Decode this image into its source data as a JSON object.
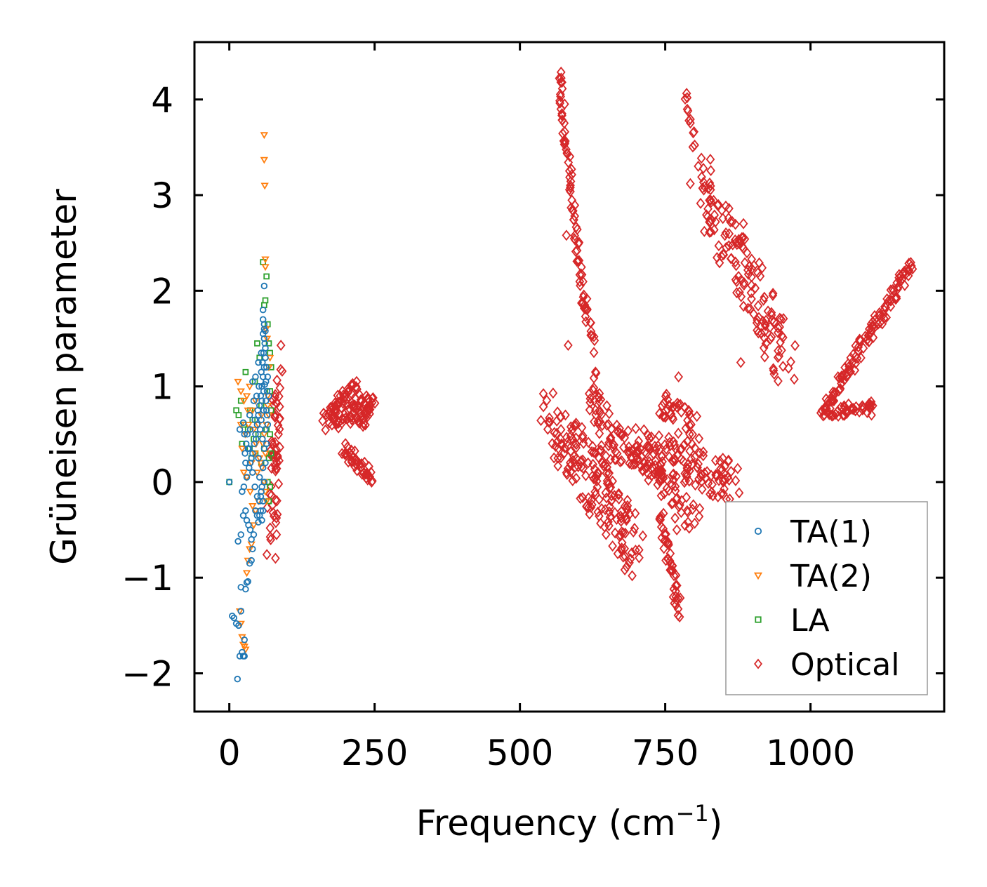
{
  "chart_data": {
    "type": "scatter",
    "title": "",
    "xlabel": "Frequency (cm",
    "xlabel_sup": "−1",
    "xlabel_close": ")",
    "ylabel": "Grüneisen parameter",
    "xlim": [
      -60,
      1230
    ],
    "ylim": [
      -2.4,
      4.6
    ],
    "xticks": [
      0,
      250,
      500,
      750,
      1000
    ],
    "xtick_labels": [
      "0",
      "250",
      "500",
      "750",
      "1000"
    ],
    "yticks": [
      -2,
      -1,
      0,
      1,
      2,
      3,
      4
    ],
    "ytick_labels": [
      "−2",
      "−1",
      "0",
      "1",
      "2",
      "3",
      "4"
    ],
    "legend_position": "bottom-right",
    "series": [
      {
        "name": "TA(1)",
        "marker": "circle",
        "color": "#1f77b4",
        "points": [
          [
            0,
            0
          ],
          [
            5,
            -1.4
          ],
          [
            8,
            -1.42
          ],
          [
            12,
            -1.48
          ],
          [
            14,
            -2.06
          ],
          [
            16,
            -1.5
          ],
          [
            18,
            -1.82
          ],
          [
            20,
            -1.35
          ],
          [
            20,
            -1.1
          ],
          [
            22,
            -1.78
          ],
          [
            24,
            -1.82
          ],
          [
            26,
            -1.82
          ],
          [
            26,
            -1.65
          ],
          [
            28,
            -1.12
          ],
          [
            30,
            -1.05
          ],
          [
            32,
            -1.04
          ],
          [
            35,
            -0.85
          ],
          [
            38,
            -0.82
          ],
          [
            40,
            -0.7
          ],
          [
            15,
            -0.62
          ],
          [
            20,
            -0.55
          ],
          [
            24,
            -0.35
          ],
          [
            28,
            -0.3
          ],
          [
            30,
            -0.4
          ],
          [
            33,
            -0.45
          ],
          [
            36,
            -0.5
          ],
          [
            38,
            -0.6
          ],
          [
            42,
            -0.55
          ],
          [
            45,
            -0.3
          ],
          [
            48,
            -0.35
          ],
          [
            50,
            -0.42
          ],
          [
            52,
            -0.2
          ],
          [
            55,
            -0.1
          ],
          [
            58,
            -0.3
          ],
          [
            22,
            -0.1
          ],
          [
            25,
            -0.05
          ],
          [
            30,
            0.05
          ],
          [
            34,
            0.15
          ],
          [
            38,
            0.25
          ],
          [
            40,
            0.3
          ],
          [
            43,
            0.4
          ],
          [
            45,
            0.5
          ],
          [
            48,
            0.6
          ],
          [
            50,
            0.7
          ],
          [
            52,
            0.8
          ],
          [
            54,
            0.9
          ],
          [
            56,
            1.0
          ],
          [
            58,
            1.1
          ],
          [
            60,
            1.2
          ],
          [
            62,
            1.3
          ],
          [
            60,
            1.5
          ],
          [
            58,
            1.7
          ],
          [
            60,
            1.6
          ],
          [
            62,
            1.4
          ],
          [
            55,
            1.15
          ],
          [
            57,
            1.25
          ],
          [
            59,
            1.35
          ],
          [
            61,
            1.45
          ],
          [
            63,
            1.05
          ],
          [
            65,
            0.95
          ],
          [
            64,
            0.75
          ],
          [
            62,
            0.55
          ],
          [
            60,
            0.35
          ],
          [
            58,
            0.15
          ],
          [
            56,
            -0.05
          ],
          [
            54,
            -0.15
          ],
          [
            52,
            0.05
          ],
          [
            50,
            0.25
          ],
          [
            46,
            0.45
          ],
          [
            44,
            0.65
          ],
          [
            42,
            0.85
          ],
          [
            40,
            1.05
          ],
          [
            36,
            0.55
          ],
          [
            32,
            0.35
          ],
          [
            28,
            0.2
          ],
          [
            26,
            0.5
          ],
          [
            24,
            0.62
          ],
          [
            18,
            0.55
          ],
          [
            35,
            0.7
          ],
          [
            45,
            1.1
          ],
          [
            50,
            1.25
          ],
          [
            55,
            1.35
          ],
          [
            58,
            1.55
          ],
          [
            60,
            1.65
          ],
          [
            62,
            1.58
          ],
          [
            64,
            1.2
          ],
          [
            66,
            1.1
          ],
          [
            68,
            0.9
          ],
          [
            66,
            0.6
          ],
          [
            64,
            0.4
          ],
          [
            62,
            0.2
          ],
          [
            60,
            0.0
          ],
          [
            58,
            -0.2
          ],
          [
            56,
            -0.4
          ],
          [
            54,
            -0.3
          ],
          [
            52,
            -0.35
          ],
          [
            48,
            -0.15
          ],
          [
            44,
            -0.05
          ],
          [
            40,
            0.1
          ],
          [
            36,
            0.2
          ],
          [
            34,
            0.35
          ],
          [
            31,
            0.5
          ],
          [
            29,
            0.4
          ],
          [
            27,
            0.3
          ],
          [
            60,
            2.05
          ],
          [
            58,
            1.8
          ],
          [
            56,
            0.85
          ],
          [
            59,
            0.95
          ],
          [
            61,
            1.02
          ],
          [
            63,
            0.85
          ],
          [
            65,
            0.7
          ],
          [
            57,
            0.45
          ],
          [
            53,
            0.55
          ],
          [
            49,
            0.75
          ],
          [
            47,
            0.9
          ],
          [
            51,
            1.0
          ],
          [
            55,
            0.65
          ],
          [
            59,
            0.75
          ]
        ]
      },
      {
        "name": "TA(2)",
        "marker": "triangle-down",
        "color": "#ff7f0e",
        "points": [
          [
            60,
            3.63
          ],
          [
            60,
            3.37
          ],
          [
            61,
            3.1
          ],
          [
            62,
            2.33
          ],
          [
            62,
            2.25
          ],
          [
            15,
            1.05
          ],
          [
            20,
            0.95
          ],
          [
            25,
            0.85
          ],
          [
            30,
            0.9
          ],
          [
            35,
            1.0
          ],
          [
            40,
            0.75
          ],
          [
            45,
            0.85
          ],
          [
            50,
            0.6
          ],
          [
            55,
            0.7
          ],
          [
            22,
            0.35
          ],
          [
            28,
            0.5
          ],
          [
            33,
            0.6
          ],
          [
            38,
            0.2
          ],
          [
            44,
            0.3
          ],
          [
            48,
            0.1
          ],
          [
            52,
            0.25
          ],
          [
            58,
            0.4
          ],
          [
            60,
            0.5
          ],
          [
            62,
            0.3
          ],
          [
            64,
            0.6
          ],
          [
            66,
            0.8
          ],
          [
            68,
            0.7
          ],
          [
            25,
            0.1
          ],
          [
            30,
            0.05
          ],
          [
            36,
            -0.1
          ],
          [
            40,
            -0.25
          ],
          [
            45,
            -0.3
          ],
          [
            50,
            -0.2
          ],
          [
            18,
            -1.35
          ],
          [
            20,
            -1.48
          ],
          [
            22,
            -1.62
          ],
          [
            24,
            -1.7
          ],
          [
            26,
            -1.72
          ],
          [
            28,
            -1.75
          ],
          [
            30,
            -0.95
          ],
          [
            32,
            -0.82
          ],
          [
            35,
            -0.7
          ],
          [
            38,
            -0.65
          ],
          [
            42,
            -0.45
          ],
          [
            56,
            0.15
          ],
          [
            60,
            0.0
          ],
          [
            62,
            -0.1
          ],
          [
            64,
            -0.2
          ],
          [
            66,
            0.9
          ],
          [
            68,
            1.2
          ],
          [
            70,
            1.3
          ],
          [
            65,
            1.5
          ],
          [
            63,
            1.6
          ],
          [
            20,
            0.6
          ],
          [
            32,
            0.75
          ],
          [
            42,
            0.55
          ],
          [
            46,
            0.4
          ],
          [
            54,
            0.2
          ]
        ]
      },
      {
        "name": "LA",
        "marker": "square",
        "color": "#2ca02c",
        "points": [
          [
            0,
            0
          ],
          [
            12,
            0.75
          ],
          [
            16,
            0.7
          ],
          [
            20,
            0.85
          ],
          [
            22,
            0.4
          ],
          [
            25,
            0.6
          ],
          [
            28,
            1.15
          ],
          [
            32,
            0.55
          ],
          [
            36,
            0.75
          ],
          [
            40,
            0.65
          ],
          [
            44,
            1.05
          ],
          [
            48,
            1.45
          ],
          [
            52,
            1.3
          ],
          [
            55,
            0.8
          ],
          [
            58,
            2.3
          ],
          [
            60,
            1.85
          ],
          [
            62,
            1.9
          ],
          [
            64,
            2.15
          ],
          [
            66,
            1.65
          ],
          [
            68,
            1.45
          ],
          [
            70,
            1.35
          ],
          [
            72,
            1.2
          ],
          [
            70,
            0.5
          ],
          [
            68,
            0.25
          ],
          [
            66,
            0.0
          ],
          [
            68,
            -0.2
          ],
          [
            70,
            -0.05
          ],
          [
            72,
            0.3
          ],
          [
            72,
            0.75
          ],
          [
            70,
            0.95
          ],
          [
            64,
            0.55
          ],
          [
            60,
            0.35
          ],
          [
            55,
            0.2
          ],
          [
            50,
            0.5
          ],
          [
            45,
            0.3
          ],
          [
            42,
            0.45
          ],
          [
            38,
            0.25
          ],
          [
            35,
            0.35
          ]
        ]
      },
      {
        "name": "Optical",
        "marker": "diamond",
        "color": "#d62728",
        "segments": [
          {
            "from": [
              72,
              -0.5
            ],
            "to": [
              85,
              1.15
            ],
            "n": 60,
            "spread": [
              8,
              0.35
            ]
          },
          {
            "from": [
              165,
              0.65
            ],
            "to": [
              245,
              0.8
            ],
            "n": 70,
            "spread": [
              6,
              0.12
            ]
          },
          {
            "from": [
              175,
              0.8
            ],
            "to": [
              220,
              1.0
            ],
            "n": 30,
            "spread": [
              6,
              0.08
            ]
          },
          {
            "from": [
              195,
              0.35
            ],
            "to": [
              248,
              0.02
            ],
            "n": 40,
            "spread": [
              6,
              0.08
            ]
          },
          {
            "from": [
              225,
              0.6
            ],
            "to": [
              245,
              0.85
            ],
            "n": 15,
            "spread": [
              4,
              0.08
            ]
          },
          {
            "from": [
              567,
              4.3
            ],
            "to": [
              610,
              1.8
            ],
            "n": 70,
            "spread": [
              4,
              0.05
            ]
          },
          {
            "from": [
              610,
              1.9
            ],
            "to": [
              625,
              1.4
            ],
            "n": 15,
            "spread": [
              5,
              0.06
            ]
          },
          {
            "from": [
              785,
              4.08
            ],
            "to": [
              800,
              3.5
            ],
            "n": 12,
            "spread": [
              4,
              0.05
            ]
          },
          {
            "from": [
              810,
              3.2
            ],
            "to": [
              960,
              1.25
            ],
            "n": 150,
            "spread": [
              20,
              0.35
            ]
          },
          {
            "from": [
              550,
              0.68
            ],
            "to": [
              700,
              -0.72
            ],
            "n": 170,
            "spread": [
              15,
              0.3
            ]
          },
          {
            "from": [
              620,
              1.1
            ],
            "to": [
              660,
              0.2
            ],
            "n": 40,
            "spread": [
              10,
              0.25
            ]
          },
          {
            "from": [
              650,
              0.45
            ],
            "to": [
              870,
              0.0
            ],
            "n": 160,
            "spread": [
              18,
              0.22
            ]
          },
          {
            "from": [
              740,
              0.85
            ],
            "to": [
              800,
              0.55
            ],
            "n": 40,
            "spread": [
              12,
              0.2
            ]
          },
          {
            "from": [
              740,
              -0.3
            ],
            "to": [
              775,
              -1.4
            ],
            "n": 45,
            "spread": [
              5,
              0.08
            ]
          },
          {
            "from": [
              700,
              0.35
            ],
            "to": [
              800,
              -0.4
            ],
            "n": 60,
            "spread": [
              12,
              0.15
            ]
          },
          {
            "from": [
              1020,
              0.7
            ],
            "to": [
              1175,
              2.3
            ],
            "n": 120,
            "spread": [
              6,
              0.08
            ]
          },
          {
            "from": [
              1025,
              0.72
            ],
            "to": [
              1110,
              0.8
            ],
            "n": 40,
            "spread": [
              6,
              0.06
            ]
          }
        ],
        "extra_points": [
          [
            580,
            2.58
          ],
          [
            583,
            1.43
          ],
          [
            570,
            0.45
          ],
          [
            1105,
            0.7
          ],
          [
            880,
            1.25
          ],
          [
            860,
            0.02
          ],
          [
            850,
            0.0
          ],
          [
            773,
            1.1
          ],
          [
            770,
            -0.5
          ]
        ]
      }
    ]
  }
}
